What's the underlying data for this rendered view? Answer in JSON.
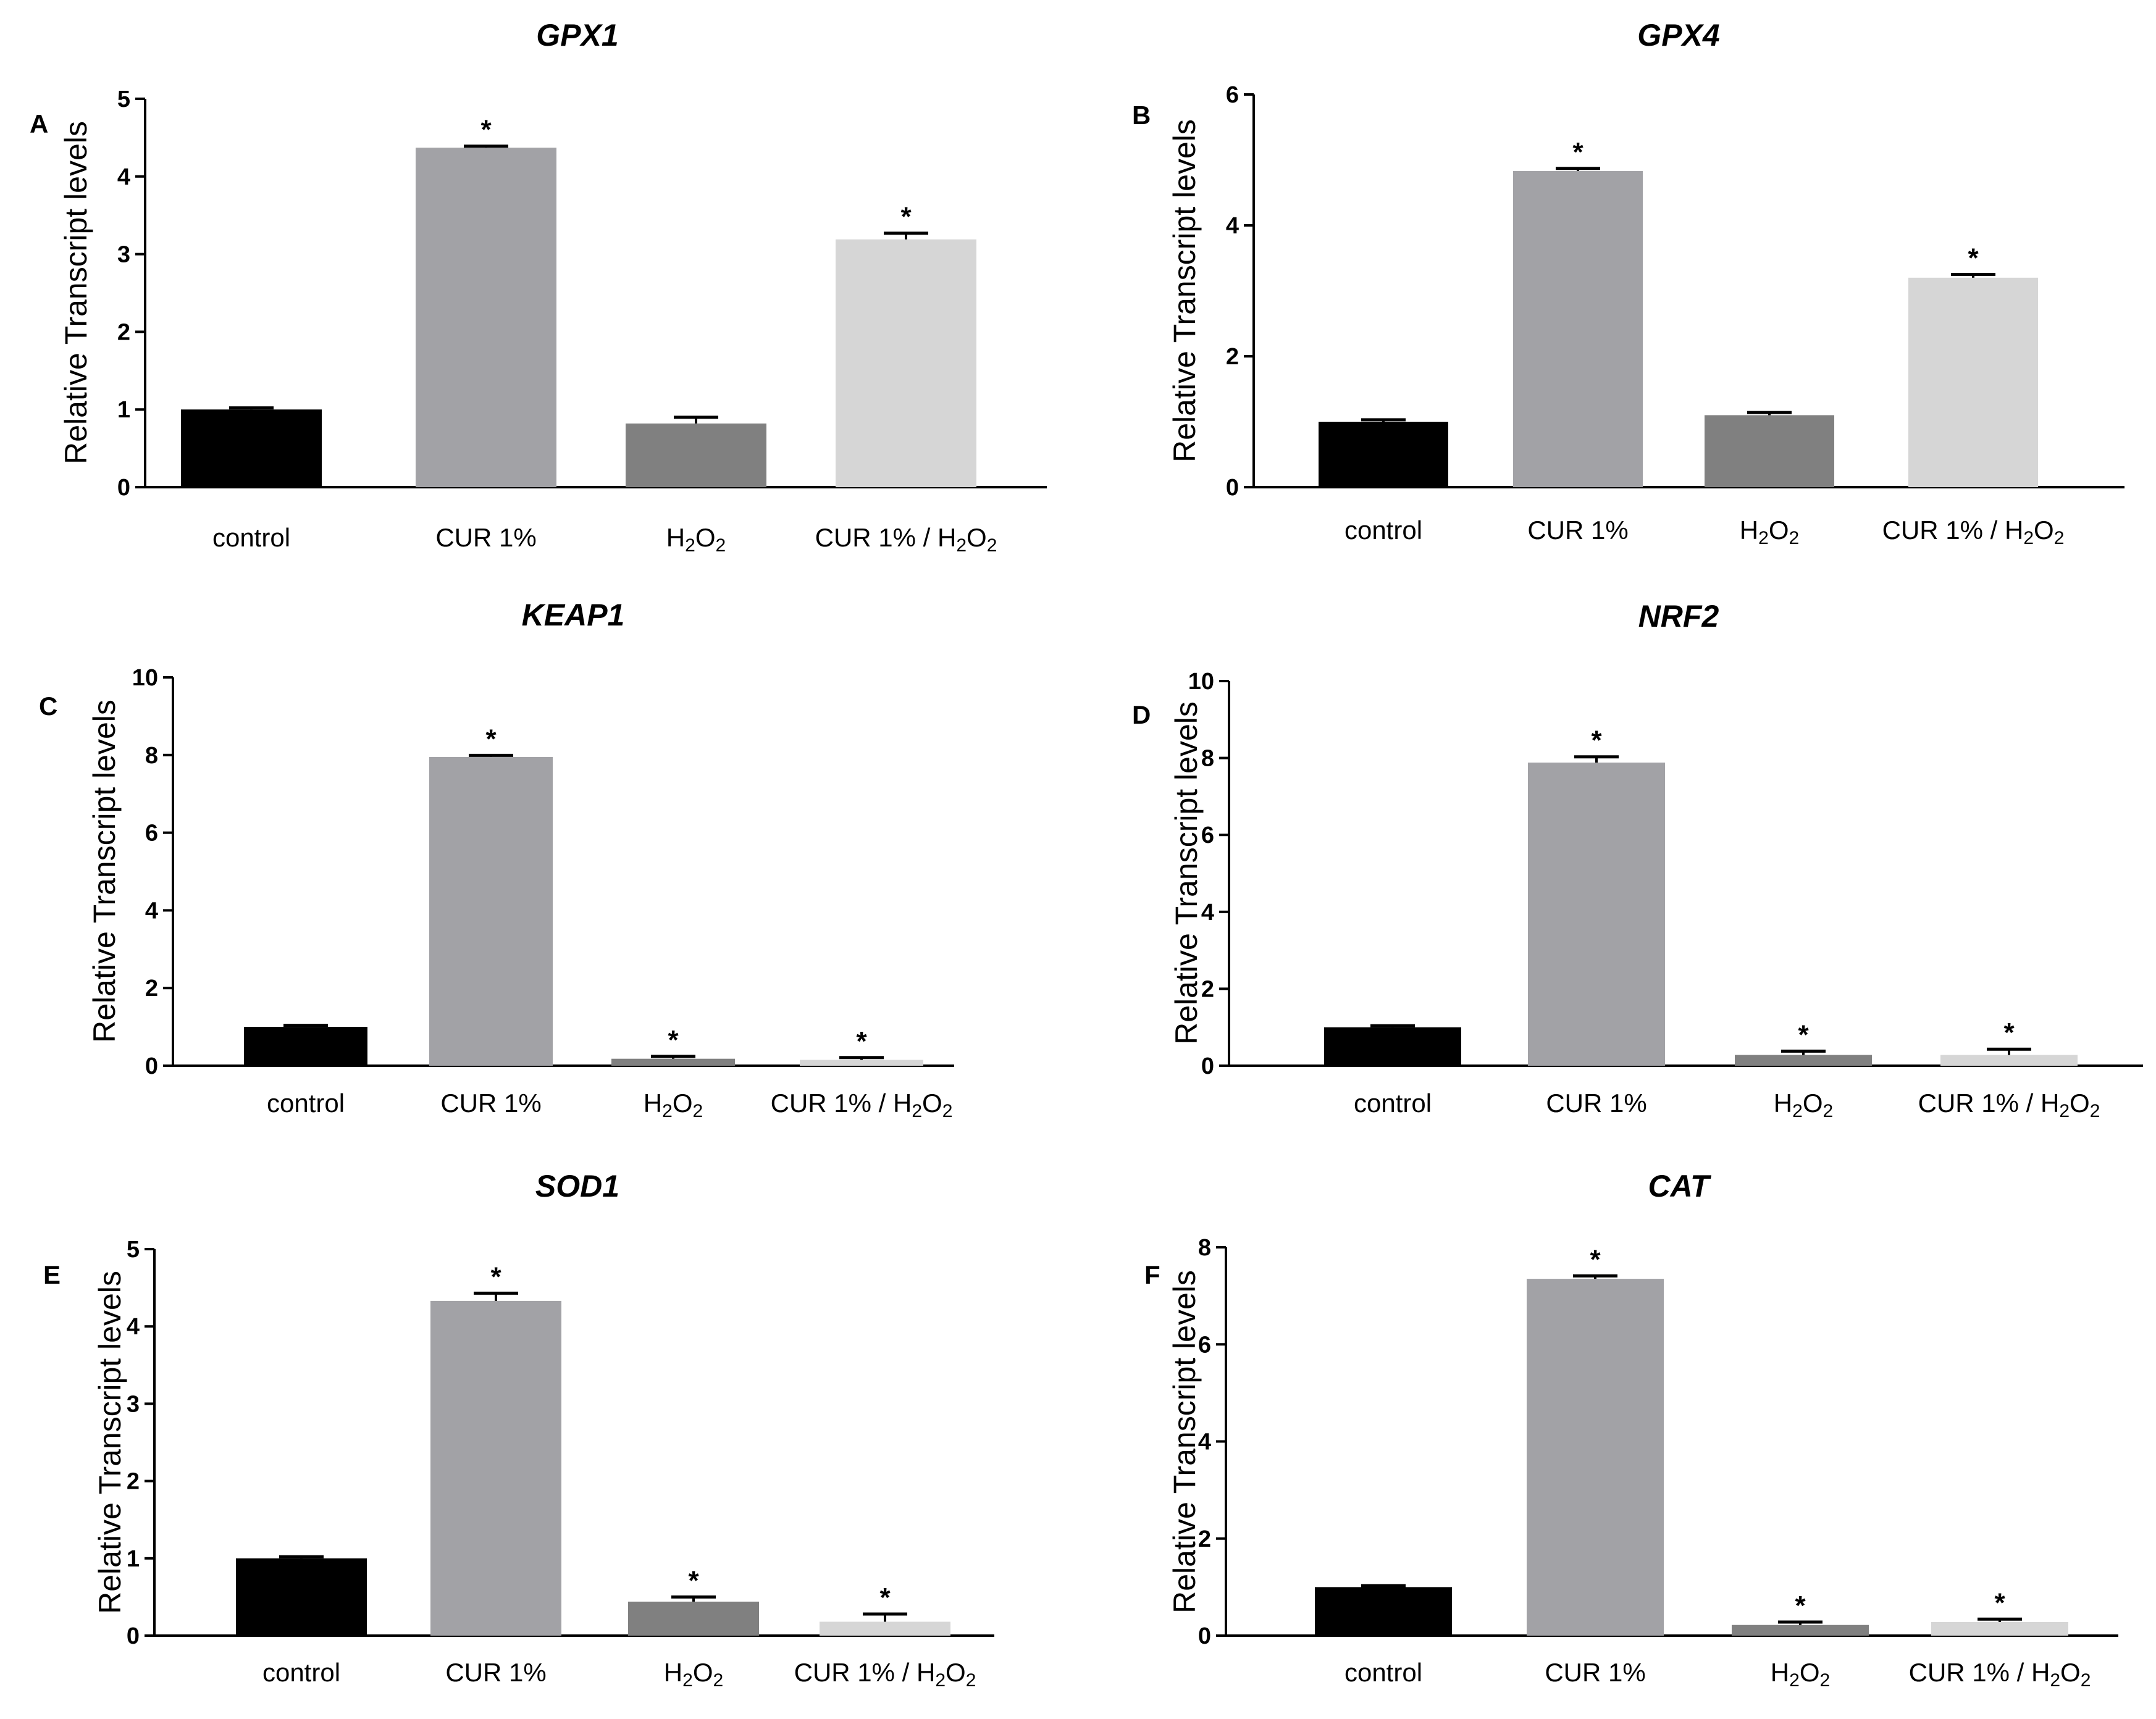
{
  "figure": {
    "ylabel": "Relative Transcript levels",
    "bar_colors": [
      "#000000",
      "#a2a2a6",
      "#808080",
      "#d6d6d6"
    ],
    "categories": [
      {
        "main": "control",
        "sub": "",
        "tail": "",
        "sub2": ""
      },
      {
        "main": "CUR 1%",
        "sub": "",
        "tail": "",
        "sub2": ""
      },
      {
        "main": "H",
        "sub": "2",
        "tail": "O",
        "sub2": "2"
      },
      {
        "main": "CUR 1% / H",
        "sub": "2",
        "tail": "O",
        "sub2": "2"
      }
    ]
  },
  "chart_data": [
    {
      "panel": "A",
      "title": "GPX1",
      "type": "bar",
      "ylabel": "Relative Transcript levels",
      "categories": [
        "control",
        "CUR 1%",
        "H2O2",
        "CUR 1% / H2O2"
      ],
      "values": [
        1.0,
        4.37,
        0.82,
        3.19
      ],
      "errors": [
        0.02,
        0.02,
        0.08,
        0.08
      ],
      "significance": [
        "",
        "*",
        "",
        "*"
      ],
      "ylim": [
        0,
        5
      ],
      "yticks": [
        0,
        1,
        2,
        3,
        4,
        5
      ]
    },
    {
      "panel": "B",
      "title": "GPX4",
      "type": "bar",
      "ylabel": "Relative Transcript levels",
      "categories": [
        "control",
        "CUR 1%",
        "H2O2",
        "CUR 1% / H2O2"
      ],
      "values": [
        1.0,
        4.83,
        1.1,
        3.2
      ],
      "errors": [
        0.03,
        0.04,
        0.04,
        0.05
      ],
      "significance": [
        "",
        "*",
        "",
        "*"
      ],
      "ylim": [
        0,
        6
      ],
      "yticks": [
        0,
        2,
        4,
        6
      ]
    },
    {
      "panel": "C",
      "title": "KEAP1",
      "type": "bar",
      "ylabel": "Relative Transcript levels",
      "categories": [
        "control",
        "CUR 1%",
        "H2O2",
        "CUR 1% / H2O2"
      ],
      "values": [
        1.0,
        7.95,
        0.18,
        0.15
      ],
      "errors": [
        0.04,
        0.04,
        0.06,
        0.06
      ],
      "significance": [
        "",
        "*",
        "*",
        "*"
      ],
      "ylim": [
        0,
        10
      ],
      "yticks": [
        0,
        2,
        4,
        6,
        8,
        10
      ]
    },
    {
      "panel": "D",
      "title": "NRF2",
      "type": "bar",
      "ylabel": "Relative Transcript levels",
      "categories": [
        "control",
        "CUR 1%",
        "H2O2",
        "CUR 1% / H2O2"
      ],
      "values": [
        1.0,
        7.88,
        0.28,
        0.28
      ],
      "errors": [
        0.04,
        0.15,
        0.1,
        0.15
      ],
      "significance": [
        "",
        "*",
        "*",
        "*"
      ],
      "ylim": [
        0,
        10
      ],
      "yticks": [
        0,
        2,
        4,
        6,
        8,
        10
      ]
    },
    {
      "panel": "E",
      "title": "SOD1",
      "type": "bar",
      "ylabel": "Relative Transcript levels",
      "categories": [
        "control",
        "CUR 1%",
        "H2O2",
        "CUR 1% / H2O2"
      ],
      "values": [
        1.0,
        4.33,
        0.44,
        0.18
      ],
      "errors": [
        0.02,
        0.1,
        0.06,
        0.1
      ],
      "significance": [
        "",
        "*",
        "*",
        "*"
      ],
      "ylim": [
        0,
        5
      ],
      "yticks": [
        0,
        1,
        2,
        3,
        4,
        5
      ]
    },
    {
      "panel": "F",
      "title": "CAT",
      "type": "bar",
      "ylabel": "Relative Transcript levels",
      "categories": [
        "control",
        "CUR 1%",
        "H2O2",
        "CUR 1% / H2O2"
      ],
      "values": [
        1.0,
        7.35,
        0.22,
        0.28
      ],
      "errors": [
        0.03,
        0.06,
        0.06,
        0.06
      ],
      "significance": [
        "",
        "*",
        "*",
        "*"
      ],
      "ylim": [
        0,
        8
      ],
      "yticks": [
        0,
        2,
        4,
        6,
        8
      ]
    }
  ]
}
